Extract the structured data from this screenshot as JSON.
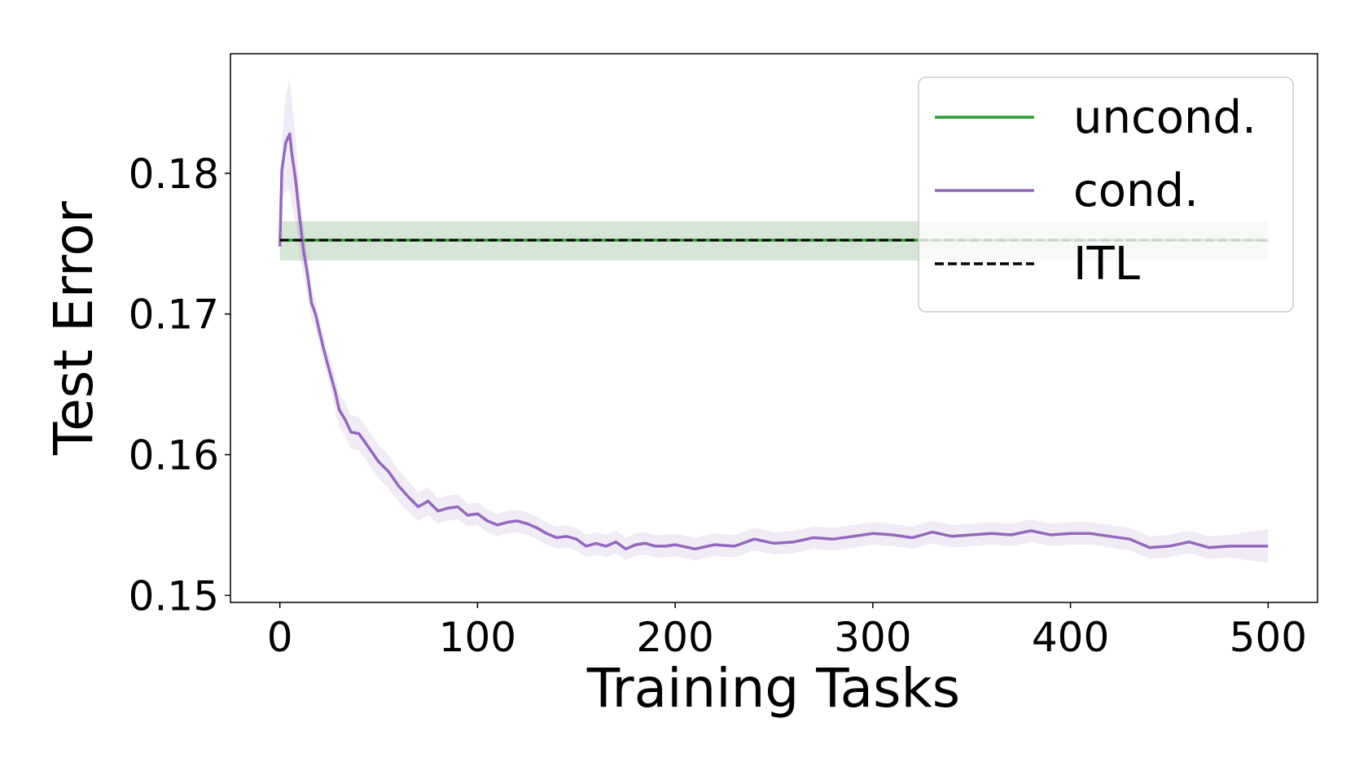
{
  "chart_data": {
    "type": "line",
    "title": "",
    "xlabel": "Training Tasks",
    "ylabel": "Test Error",
    "xlim": [
      -25,
      525
    ],
    "ylim": [
      0.1495,
      0.1885
    ],
    "xticks": [
      0,
      100,
      200,
      300,
      400,
      500
    ],
    "xtick_labels": [
      "0",
      "100",
      "200",
      "300",
      "400",
      "500"
    ],
    "yticks": [
      0.15,
      0.16,
      0.17,
      0.18
    ],
    "ytick_labels": [
      "0.15",
      "0.16",
      "0.17",
      "0.18"
    ],
    "grid": false,
    "legend_position": "top-right",
    "series": [
      {
        "name": "uncond.",
        "color": "#2ca02c",
        "style": "solid",
        "x": [
          0,
          500
        ],
        "y": [
          0.17525,
          0.17525
        ],
        "band_lower": [
          0.1738,
          0.1738
        ],
        "band_upper": [
          0.1766,
          0.1766
        ],
        "band_color": "#2e7d32"
      },
      {
        "name": "cond.",
        "color": "#9467bd",
        "style": "solid",
        "x": [
          0,
          1,
          3,
          5,
          6,
          8,
          10,
          12,
          14,
          16,
          18,
          20,
          22,
          25,
          28,
          30,
          33,
          36,
          40,
          45,
          50,
          55,
          60,
          65,
          70,
          75,
          80,
          85,
          90,
          95,
          100,
          105,
          110,
          115,
          120,
          125,
          130,
          135,
          140,
          145,
          150,
          155,
          160,
          165,
          170,
          175,
          180,
          185,
          190,
          195,
          200,
          210,
          220,
          230,
          240,
          250,
          260,
          270,
          280,
          290,
          300,
          310,
          320,
          330,
          340,
          350,
          360,
          370,
          380,
          390,
          400,
          410,
          420,
          430,
          440,
          450,
          460,
          470,
          480,
          490,
          500
        ],
        "y": [
          0.1748,
          0.1802,
          0.1822,
          0.1828,
          0.1815,
          0.1795,
          0.1768,
          0.1745,
          0.1728,
          0.1708,
          0.17,
          0.1688,
          0.1676,
          0.166,
          0.1645,
          0.1632,
          0.1625,
          0.1616,
          0.1615,
          0.1605,
          0.1595,
          0.1588,
          0.1578,
          0.157,
          0.1563,
          0.1567,
          0.156,
          0.1562,
          0.1563,
          0.1557,
          0.1558,
          0.1553,
          0.155,
          0.1552,
          0.1553,
          0.1551,
          0.1548,
          0.1544,
          0.1541,
          0.1542,
          0.154,
          0.1535,
          0.1537,
          0.1535,
          0.1538,
          0.1533,
          0.1536,
          0.1537,
          0.1535,
          0.1535,
          0.1536,
          0.1533,
          0.1536,
          0.1535,
          0.154,
          0.1537,
          0.1538,
          0.1541,
          0.154,
          0.1542,
          0.1544,
          0.1543,
          0.1541,
          0.1545,
          0.1542,
          0.1543,
          0.1544,
          0.1543,
          0.1546,
          0.1543,
          0.1544,
          0.1544,
          0.1542,
          0.154,
          0.1534,
          0.1535,
          0.1538,
          0.1534,
          0.1535,
          0.1535,
          0.1535
        ],
        "band_halfwidth": [
          0.0005,
          0.002,
          0.0035,
          0.004,
          0.0038,
          0.003,
          0.0022,
          0.0018,
          0.0015,
          0.0012,
          0.001,
          0.001,
          0.001,
          0.001,
          0.0012,
          0.0012,
          0.0012,
          0.0012,
          0.0012,
          0.0012,
          0.0012,
          0.0012,
          0.0011,
          0.0011,
          0.001,
          0.001,
          0.0009,
          0.0009,
          0.0009,
          0.0008,
          0.0008,
          0.0008,
          0.0008,
          0.0008,
          0.0008,
          0.0008,
          0.0008,
          0.0008,
          0.0008,
          0.0008,
          0.0008,
          0.0008,
          0.0008,
          0.0008,
          0.0008,
          0.0008,
          0.0008,
          0.0008,
          0.0008,
          0.0008,
          0.0008,
          0.0008,
          0.0008,
          0.0008,
          0.0008,
          0.0008,
          0.0008,
          0.0008,
          0.0008,
          0.0008,
          0.0008,
          0.0008,
          0.0008,
          0.0008,
          0.0008,
          0.0008,
          0.0008,
          0.0008,
          0.0008,
          0.0008,
          0.0008,
          0.0008,
          0.0008,
          0.0008,
          0.0008,
          0.0008,
          0.0008,
          0.0008,
          0.0008,
          0.001,
          0.0012
        ],
        "band_color": "#9467bd"
      },
      {
        "name": "ITL",
        "color": "#000000",
        "style": "dashed",
        "x": [
          0,
          500
        ],
        "y": [
          0.17525,
          0.17525
        ]
      }
    ]
  }
}
